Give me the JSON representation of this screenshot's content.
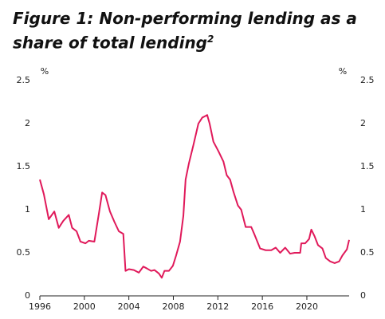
{
  "chart_data": {
    "type": "line",
    "title": "Figure 1: Non-performing lending as a share of total lending",
    "title_note": "2",
    "y_unit": "%",
    "y2_unit": "%",
    "xlim": [
      1996,
      2023.8
    ],
    "xticks": [
      1996,
      2000,
      2004,
      2008,
      2012,
      2016,
      2020
    ],
    "ylim": [
      0,
      2.5
    ],
    "yticks": [
      0,
      0.5,
      1,
      1.5,
      2,
      2.5
    ],
    "y2lim": [
      0,
      2.5
    ],
    "y2ticks": [
      0,
      0.5,
      1,
      1.5,
      2,
      2.5
    ],
    "grid": false,
    "x": [
      1996.0,
      1996.36,
      1996.8,
      1997.3,
      1997.7,
      1998.1,
      1998.6,
      1998.9,
      1999.3,
      1999.65,
      2000.1,
      2000.4,
      2000.9,
      2001.3,
      2001.6,
      2001.9,
      2002.3,
      2002.7,
      2003.1,
      2003.5,
      2003.7,
      2004.0,
      2004.45,
      2004.9,
      2005.3,
      2005.6,
      2006.0,
      2006.3,
      2006.7,
      2006.96,
      2007.2,
      2007.6,
      2007.96,
      2008.25,
      2008.6,
      2008.9,
      2009.1,
      2009.4,
      2009.8,
      2010.25,
      2010.6,
      2011.04,
      2011.26,
      2011.6,
      2012.05,
      2012.5,
      2012.8,
      2013.1,
      2013.4,
      2013.8,
      2014.1,
      2014.5,
      2015.0,
      2015.3,
      2015.8,
      2016.3,
      2016.8,
      2017.2,
      2017.6,
      2018.05,
      2018.5,
      2018.9,
      2019.4,
      2019.5,
      2019.85,
      2020.2,
      2020.4,
      2020.7,
      2021.0,
      2021.4,
      2021.7,
      2022.1,
      2022.5,
      2022.9,
      2023.2,
      2023.6,
      2023.8
    ],
    "series": [
      {
        "color": "#e0195a",
        "values": [
          1.35,
          1.18,
          0.89,
          0.98,
          0.79,
          0.87,
          0.94,
          0.79,
          0.75,
          0.63,
          0.61,
          0.64,
          0.63,
          0.95,
          1.2,
          1.17,
          0.98,
          0.86,
          0.75,
          0.72,
          0.29,
          0.31,
          0.3,
          0.27,
          0.34,
          0.32,
          0.29,
          0.3,
          0.26,
          0.21,
          0.29,
          0.29,
          0.35,
          0.47,
          0.63,
          0.93,
          1.35,
          1.54,
          1.75,
          2.0,
          2.07,
          2.1,
          2.0,
          1.79,
          1.68,
          1.56,
          1.4,
          1.35,
          1.21,
          1.05,
          1.0,
          0.8,
          0.8,
          0.71,
          0.55,
          0.53,
          0.53,
          0.56,
          0.5,
          0.56,
          0.49,
          0.5,
          0.5,
          0.61,
          0.61,
          0.66,
          0.77,
          0.69,
          0.59,
          0.55,
          0.44,
          0.4,
          0.38,
          0.4,
          0.47,
          0.54,
          0.65
        ]
      }
    ]
  }
}
